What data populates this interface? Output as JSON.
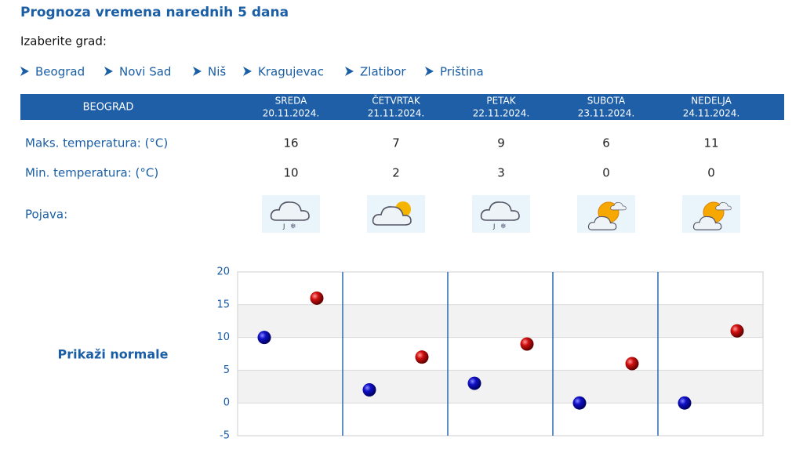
{
  "header": {
    "title": "Prognoza vremena narednih 5 dana",
    "choose_city": "Izaberite grad:"
  },
  "cities": [
    "Beograd",
    "Novi Sad",
    "Niš",
    "Kragujevac",
    "Zlatibor",
    "Priština"
  ],
  "table": {
    "city": "BEOGRAD",
    "days": [
      {
        "day": "SREDA",
        "date": "20.11.2024."
      },
      {
        "day": "ČETVRTAK",
        "date": "21.11.2024."
      },
      {
        "day": "PETAK",
        "date": "22.11.2024."
      },
      {
        "day": "SUBOTA",
        "date": "23.11.2024."
      },
      {
        "day": "NEDELJA",
        "date": "24.11.2024."
      }
    ],
    "rows": [
      {
        "label": "Maks. temperatura: (°C)",
        "values": [
          16,
          7,
          9,
          6,
          11
        ]
      },
      {
        "label": "Min. temperatura: (°C)",
        "values": [
          10,
          2,
          3,
          0,
          0
        ]
      }
    ],
    "phenomenon_label": "Pojava:"
  },
  "normals_link": "Prikaži normale",
  "chart_data": {
    "type": "scatter",
    "ylim": [
      -5,
      20
    ],
    "yticks": [
      -5,
      0,
      5,
      10,
      15,
      20
    ],
    "grid": true,
    "series": [
      {
        "color": "#0a0ab4",
        "values": [
          10,
          2,
          3,
          0,
          0
        ]
      },
      {
        "color": "#c80a0a",
        "values": [
          16,
          7,
          9,
          6,
          11
        ]
      }
    ]
  }
}
